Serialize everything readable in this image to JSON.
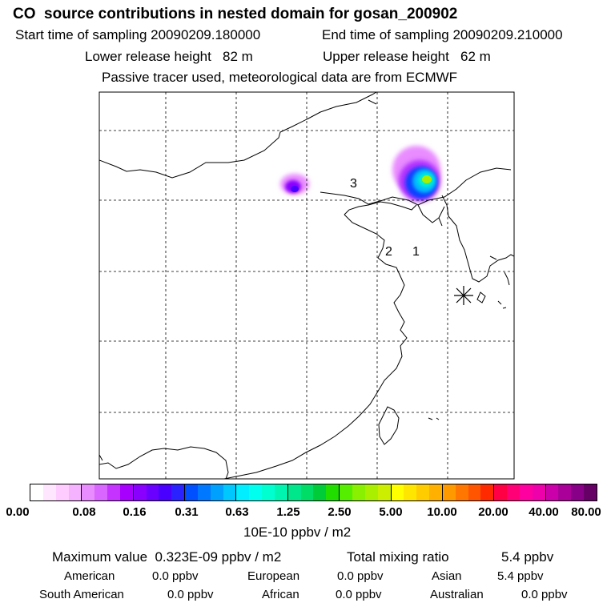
{
  "header": {
    "title": "CO  source contributions in nested domain for gosan_200902",
    "start_time": "Start time of sampling 20090209.180000",
    "end_time": "End time of sampling 20090209.210000",
    "lower_height": "Lower release height   82 m",
    "upper_height": "Upper release height   62 m",
    "note": "Passive tracer used, meteorological data are from ECMWF"
  },
  "map": {
    "markers": [
      "3",
      "2",
      "1"
    ],
    "receptor_icon": "asterisk-receptor-icon"
  },
  "colorbar": {
    "ticks": [
      "0.00",
      "0.08",
      "0.16",
      "0.31",
      "0.63",
      "1.25",
      "2.50",
      "5.00",
      "10.00",
      "20.00",
      "40.00",
      "80.00"
    ],
    "unit": "10E-10 ppbv / m2",
    "colors": [
      [
        "#ffffff",
        "#ffe6ff",
        "#ffccff",
        "#f5b3ff"
      ],
      [
        "#e98cff",
        "#d966ff",
        "#c433ff",
        "#a800ff"
      ],
      [
        "#8a00ff",
        "#6a00ff",
        "#4a00ff",
        "#2a22ff"
      ],
      [
        "#0050ff",
        "#0078ff",
        "#00a0ff",
        "#00c8ff"
      ],
      [
        "#00eeff",
        "#00ffee",
        "#00ffd0",
        "#00f5b0"
      ],
      [
        "#00e68a",
        "#00dd66",
        "#00cc3a",
        "#22dd00"
      ],
      [
        "#55ee00",
        "#88f000",
        "#aaee00",
        "#ccee00"
      ],
      [
        "#ffff00",
        "#ffe600",
        "#ffcc00",
        "#ffb000"
      ],
      [
        "#ff9900",
        "#ff7700",
        "#ff5500",
        "#ff2a00"
      ],
      [
        "#ff0044",
        "#ff0077",
        "#ff00a0",
        "#ee00aa"
      ],
      [
        "#cc00aa",
        "#aa0099",
        "#880088",
        "#660066"
      ]
    ]
  },
  "summary": {
    "max_value": "Maximum value  0.323E-09 ppbv / m2",
    "total_label": "Total mixing ratio",
    "total_value": "5.4 ppbv",
    "regions": [
      {
        "name": "American",
        "value": "0.0 ppbv"
      },
      {
        "name": "European",
        "value": "0.0 ppbv"
      },
      {
        "name": "Asian",
        "value": "5.4 ppbv"
      },
      {
        "name": "South American",
        "value": "0.0 ppbv"
      },
      {
        "name": "African",
        "value": "0.0 ppbv"
      },
      {
        "name": "Australian",
        "value": "0.0 ppbv"
      }
    ]
  }
}
